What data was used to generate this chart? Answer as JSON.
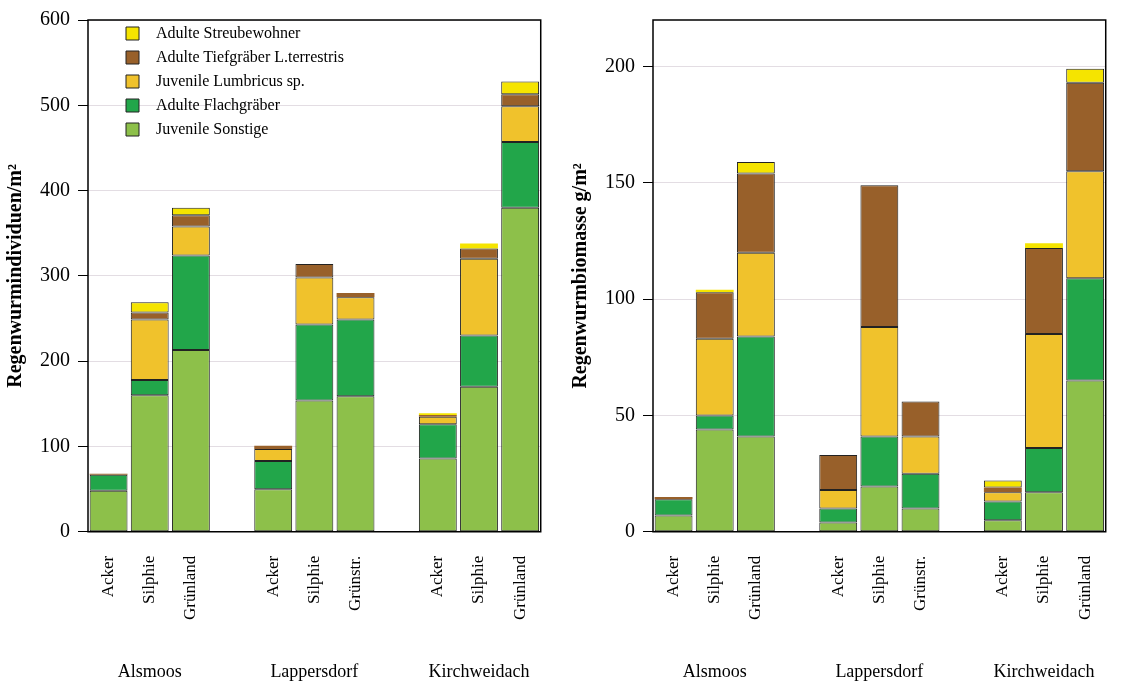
{
  "chart_data": [
    {
      "type": "bar",
      "stacked": true,
      "ylabel": "Regenwurmindividuen/m²",
      "categories": [
        "Acker",
        "Silphie",
        "Grünland",
        null,
        "Acker",
        "Silphie",
        "Grünstr.",
        null,
        "Acker",
        "Silphie",
        "Grünland"
      ],
      "ylim": [
        0,
        600
      ],
      "yticks": [
        0,
        100,
        200,
        300,
        400,
        500,
        600
      ],
      "grid": "y",
      "legend": "top left",
      "annotations": [
        "Alsmoos",
        "Lappersdorf",
        "Kirchweidach"
      ],
      "series": [
        {
          "name": "Juvenile Sonstige",
          "color": "#8dc04a",
          "values": [
            48,
            160,
            213,
            null,
            50,
            154,
            159,
            null,
            86,
            170,
            380
          ]
        },
        {
          "name": "Adulte Flachgräber",
          "color": "#22a64a",
          "values": [
            19,
            18,
            111,
            null,
            33,
            89,
            90,
            null,
            40,
            60,
            77
          ]
        },
        {
          "name": "Juvenile Lumbricus sp.",
          "color": "#f0c22c",
          "values": [
            0,
            71,
            34,
            null,
            14,
            55,
            26,
            null,
            9,
            90,
            42
          ]
        },
        {
          "name": "Adulte Tiefgräber L.terrestris",
          "color": "#98602a",
          "values": [
            1,
            8,
            13,
            null,
            4,
            16,
            5,
            null,
            2,
            12,
            14
          ]
        },
        {
          "name": "Adulte Streubewohner",
          "color": "#f5e400",
          "values": [
            0,
            12,
            9,
            null,
            0,
            0,
            0,
            null,
            2,
            6,
            15
          ]
        }
      ]
    },
    {
      "type": "bar",
      "stacked": true,
      "ylabel": "Regenwurmbiomasse g/m²",
      "categories": [
        "Acker",
        "Silphie",
        "Grünland",
        null,
        "Acker",
        "Silphie",
        "Grünstr.",
        null,
        "Acker",
        "Silphie",
        "Grünland"
      ],
      "ylim": [
        0,
        220
      ],
      "yticks": [
        0,
        50,
        100,
        150,
        200
      ],
      "grid": "y",
      "annotations": [
        "Alsmoos",
        "Lappersdorf",
        "Kirchweidach"
      ],
      "series": [
        {
          "color": "#8dc04a",
          "values": [
            7,
            44,
            41,
            null,
            4,
            19.5,
            10,
            null,
            5,
            17,
            65
          ]
        },
        {
          "color": "#22a64a",
          "values": [
            7,
            6,
            43,
            null,
            6,
            21.5,
            15,
            null,
            8,
            19,
            44
          ]
        },
        {
          "color": "#f0c22c",
          "values": [
            0,
            33,
            36,
            null,
            8,
            47,
            16,
            null,
            4,
            49,
            46
          ]
        },
        {
          "color": "#98602a",
          "values": [
            1,
            20,
            34,
            null,
            15,
            61,
            15,
            null,
            2,
            37,
            38
          ]
        },
        {
          "color": "#f5e400",
          "values": [
            0,
            1,
            5,
            null,
            0,
            0,
            0,
            null,
            3,
            2,
            6
          ]
        }
      ]
    }
  ]
}
